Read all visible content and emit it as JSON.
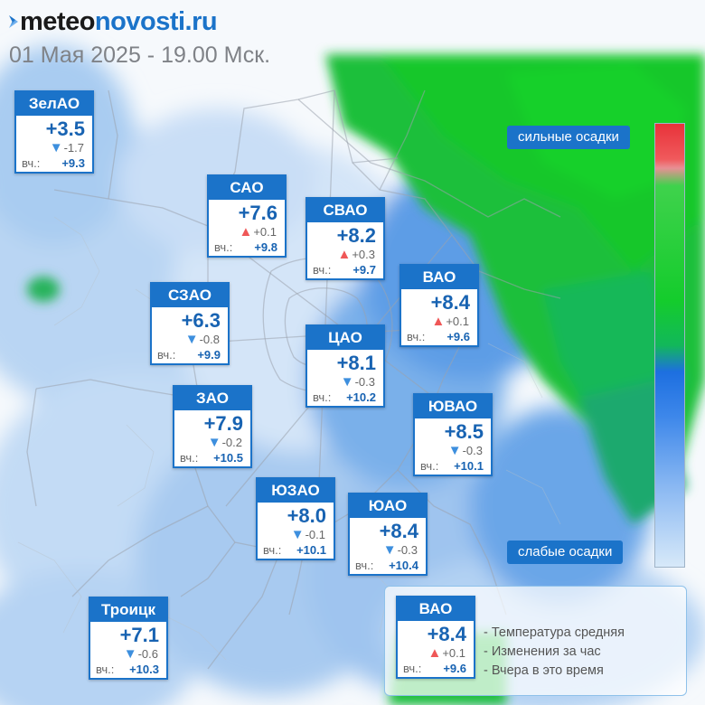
{
  "header": {
    "logo_part1": "meteo",
    "logo_part2": "novosti.ru",
    "subtitle": "01 Мая 2025 - 19.00 Мск."
  },
  "districts": [
    {
      "name": "ЗелАО",
      "temp": "+3.5",
      "delta": "-1.7",
      "trend": "down",
      "yesterday_label": "вч.:",
      "yesterday": "+9.3"
    },
    {
      "name": "САО",
      "temp": "+7.6",
      "delta": "+0.1",
      "trend": "up",
      "yesterday_label": "вч.:",
      "yesterday": "+9.8"
    },
    {
      "name": "СВАО",
      "temp": "+8.2",
      "delta": "+0.3",
      "trend": "up",
      "yesterday_label": "вч.:",
      "yesterday": "+9.7"
    },
    {
      "name": "ВАО",
      "temp": "+8.4",
      "delta": "+0.1",
      "trend": "up",
      "yesterday_label": "вч.:",
      "yesterday": "+9.6"
    },
    {
      "name": "СЗАО",
      "temp": "+6.3",
      "delta": "-0.8",
      "trend": "down",
      "yesterday_label": "вч.:",
      "yesterday": "+9.9"
    },
    {
      "name": "ЦАО",
      "temp": "+8.1",
      "delta": "-0.3",
      "trend": "down",
      "yesterday_label": "вч.:",
      "yesterday": "+10.2"
    },
    {
      "name": "ЗАО",
      "temp": "+7.9",
      "delta": "-0.2",
      "trend": "down",
      "yesterday_label": "вч.:",
      "yesterday": "+10.5"
    },
    {
      "name": "ЮВАО",
      "temp": "+8.5",
      "delta": "-0.3",
      "trend": "down",
      "yesterday_label": "вч.:",
      "yesterday": "+10.1"
    },
    {
      "name": "ЮЗАО",
      "temp": "+8.0",
      "delta": "-0.1",
      "trend": "down",
      "yesterday_label": "вч.:",
      "yesterday": "+10.1"
    },
    {
      "name": "ЮАО",
      "temp": "+8.4",
      "delta": "-0.3",
      "trend": "down",
      "yesterday_label": "вч.:",
      "yesterday": "+10.4"
    },
    {
      "name": "Троицк",
      "temp": "+7.1",
      "delta": "-0.6",
      "trend": "down",
      "yesterday_label": "вч.:",
      "yesterday": "+10.3"
    }
  ],
  "scale": {
    "top_label": "сильные осадки",
    "bottom_label": "слабые осадки"
  },
  "legend": {
    "sample": {
      "name": "ВАО",
      "temp": "+8.4",
      "delta": "+0.1",
      "trend": "up",
      "yesterday_label": "вч.:",
      "yesterday": "+9.6"
    },
    "line1": "- Температура средняя",
    "line2": "- Изменения за час",
    "line3": "- Вчера в это время"
  },
  "colors": {
    "accent": "#1b73c9",
    "temp_text": "#1863b2",
    "trend_up": "#ef5757",
    "trend_down": "#3d8fde",
    "heavy_precip": "#14cc2c",
    "light_precip": "#d7e9f9"
  },
  "icons": {
    "trend_up": "triangle-up-icon",
    "trend_down": "triangle-down-icon",
    "logo": "meteonovosti-logo-icon"
  }
}
